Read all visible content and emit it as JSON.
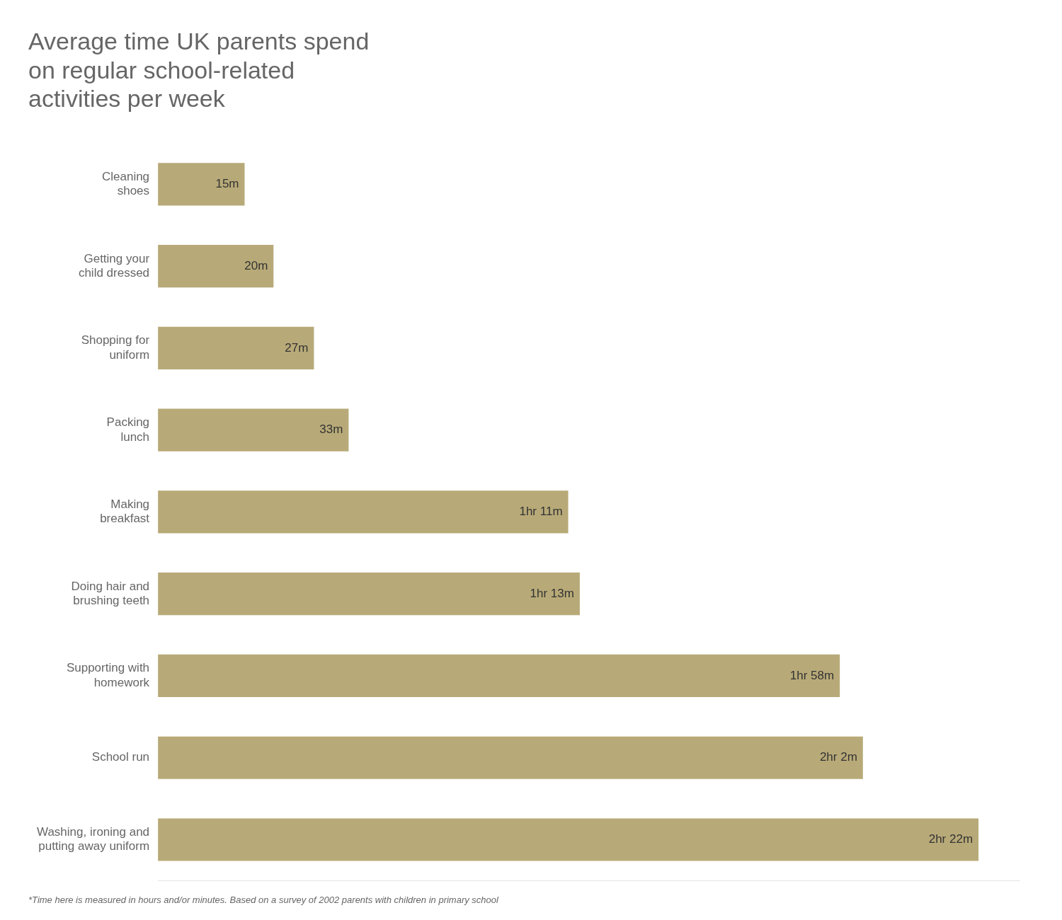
{
  "chart_data": {
    "type": "bar",
    "orientation": "horizontal",
    "title": "Average time UK parents spend\non regular school-related\nactivities per week",
    "annotations": [
      "*Time here is measured in hours and/or minutes. Based on a survey of 2002 parents with children in primary school"
    ],
    "categories": [
      "Cleaning\nshoes",
      "Getting your\nchild dressed",
      "Shopping for\nuniform",
      "Packing\nlunch",
      "Making\nbreakfast",
      "Doing hair and\nbrushing teeth",
      "Supporting with\nhomework",
      "School run",
      "Washing, ironing and\nputting away uniform"
    ],
    "values": [
      15,
      20,
      27,
      33,
      71,
      73,
      118,
      122,
      142
    ],
    "value_labels": [
      "15m",
      "20m",
      "27m",
      "33m",
      "1hr 11m",
      "1hr 13m",
      "1hr 58m",
      "2hr 2m",
      "2hr 22m"
    ],
    "data_labels": true,
    "color": "#b8aa78",
    "xlim": [
      0,
      149.1
    ],
    "tick_labels": "y",
    "grid": false
  }
}
